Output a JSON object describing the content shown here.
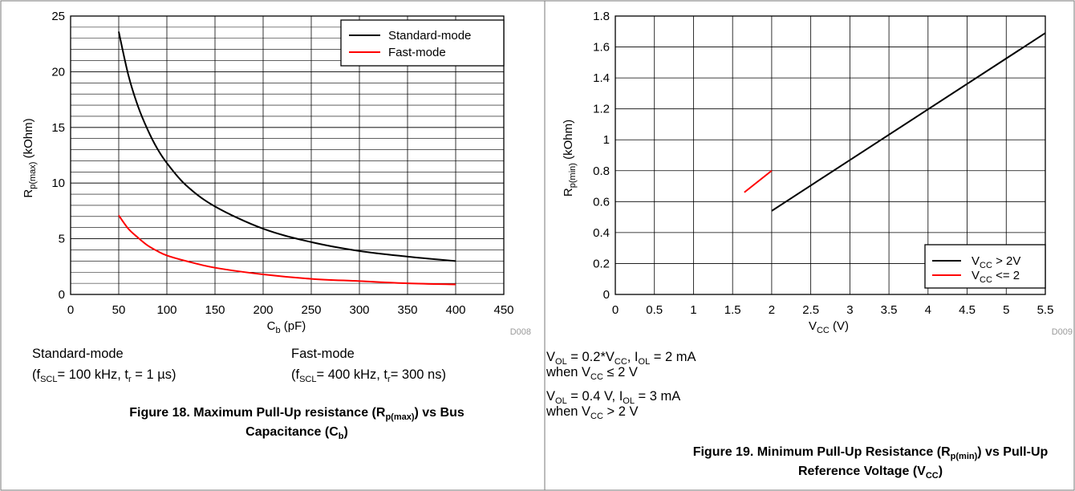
{
  "chart_data": [
    {
      "type": "line",
      "series": [
        {
          "name": "Standard-mode",
          "color": "#000000",
          "x": [
            50,
            60,
            70,
            80,
            90,
            100,
            120,
            150,
            200,
            250,
            300,
            350,
            400
          ],
          "y": [
            23.6,
            19.7,
            16.9,
            14.8,
            13.1,
            11.8,
            9.8,
            7.9,
            5.9,
            4.7,
            3.9,
            3.4,
            3.0
          ]
        },
        {
          "name": "Fast-mode",
          "color": "#ff0000",
          "x": [
            50,
            60,
            70,
            80,
            90,
            100,
            120,
            150,
            200,
            250,
            300,
            350,
            400
          ],
          "y": [
            7.1,
            5.9,
            5.1,
            4.4,
            3.9,
            3.5,
            3.0,
            2.4,
            1.8,
            1.4,
            1.2,
            1.0,
            0.9
          ]
        }
      ],
      "xlabel": "C",
      "xlabel_sub": "b",
      "xlabel_suffix": " (pF)",
      "ylabel": "R",
      "ylabel_sub": "p(max)",
      "ylabel_suffix": " (kOhm)",
      "xlim": [
        0,
        450
      ],
      "ylim": [
        0,
        25
      ],
      "x_ticks": [
        "0",
        "50",
        "100",
        "150",
        "200",
        "250",
        "300",
        "350",
        "400",
        "450"
      ],
      "y_ticks": [
        "0",
        "5",
        "10",
        "15",
        "20",
        "25"
      ],
      "grid": true,
      "legend_position": "top-right",
      "code": "D008",
      "conditions": [
        {
          "title": "Standard-mode",
          "line": "(f_SCL= 100 kHz, t_r = 1 µs)"
        },
        {
          "title": "Fast-mode",
          "line": "(f_SCL= 400 kHz, t_r= 300 ns)"
        }
      ],
      "caption": "Figure 18. Maximum Pull-Up resistance (R_p(max)) vs Bus Capacitance (C_b)"
    },
    {
      "type": "line",
      "series": [
        {
          "name": "V_CC > 2V",
          "color": "#000000",
          "x": [
            2.0,
            5.5
          ],
          "y": [
            0.54,
            1.69
          ]
        },
        {
          "name": "V_CC <= 2",
          "color": "#ff0000",
          "x": [
            1.65,
            2.0
          ],
          "y": [
            0.66,
            0.8
          ]
        }
      ],
      "xlabel": "V",
      "xlabel_sub": "CC",
      "xlabel_suffix": " (V)",
      "ylabel": "R",
      "ylabel_sub": "p(min)",
      "ylabel_suffix": " (kOhm)",
      "xlim": [
        0,
        5.5
      ],
      "ylim": [
        0,
        1.8
      ],
      "x_ticks": [
        "0",
        "0.5",
        "1",
        "1.5",
        "2",
        "2.5",
        "3",
        "3.5",
        "4",
        "4.5",
        "5",
        "5.5"
      ],
      "y_ticks": [
        "0",
        "0.2",
        "0.4",
        "0.6",
        "0.8",
        "1",
        "1.2",
        "1.4",
        "1.6",
        "1.8"
      ],
      "grid": true,
      "legend_position": "bottom-right",
      "code": "D009",
      "conditions": [
        {
          "line1": "V_OL = 0.2*V_CC, I_OL = 2 mA",
          "line2": "when V_CC ≤ 2 V"
        },
        {
          "line1": "V_OL = 0.4 V, I_OL = 3 mA",
          "line2": "when V_CC > 2 V"
        }
      ],
      "caption": "Figure 19. Minimum Pull-Up Resistance (R_p(min)) vs Pull-Up Reference Voltage (V_CC)"
    }
  ]
}
